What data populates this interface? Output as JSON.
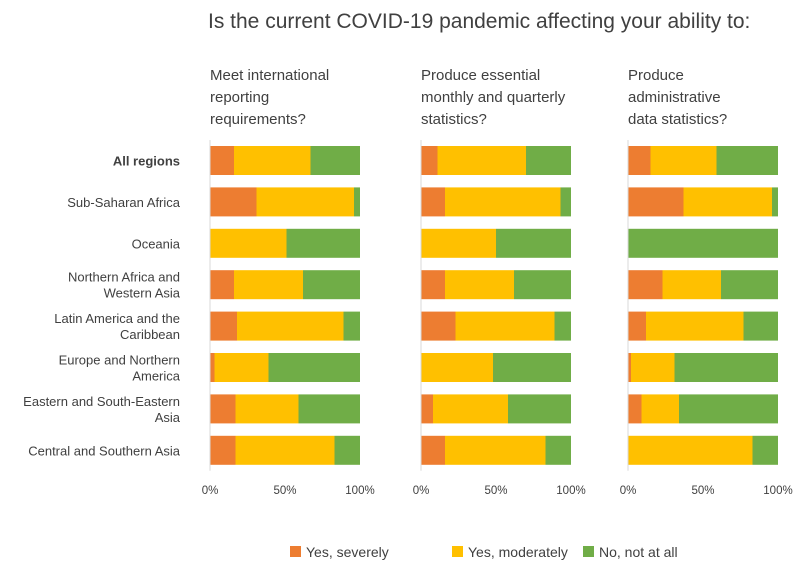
{
  "chart_data": {
    "type": "bar",
    "orientation": "horizontal",
    "stacked": true,
    "percent_stacked": true,
    "title": "Is the current COVID-19 pandemic affecting your ability to:",
    "categories": [
      [
        "All regions"
      ],
      [
        "Sub-Saharan Africa"
      ],
      [
        "Oceania"
      ],
      [
        "Northern Africa and",
        "Western Asia"
      ],
      [
        "Latin America and the",
        "Caribbean"
      ],
      [
        "Europe and Northern",
        "America"
      ],
      [
        "Eastern and South-Eastern",
        "Asia"
      ],
      [
        "Central and Southern Asia"
      ]
    ],
    "bold_categories": [
      0
    ],
    "xticks": [
      "0%",
      "50%",
      "100%"
    ],
    "xlim": [
      0,
      100
    ],
    "legend": {
      "placement": "bottom",
      "entries": [
        {
          "name": "Yes, severely",
          "color": "#ED7D31"
        },
        {
          "name": "Yes, moderately",
          "color": "#FFC000"
        },
        {
          "name": "No, not at all",
          "color": "#70AD47"
        }
      ]
    },
    "panels": [
      {
        "title": [
          "Meet international",
          "reporting",
          "requirements?"
        ],
        "series": [
          {
            "name": "Yes, severely",
            "values": [
              16,
              31,
              0,
              16,
              18,
              3,
              17,
              17
            ]
          },
          {
            "name": "Yes, moderately",
            "values": [
              51,
              65,
              51,
              46,
              71,
              36,
              42,
              66
            ]
          },
          {
            "name": "No, not at all",
            "values": [
              33,
              4,
              49,
              38,
              11,
              61,
              41,
              17
            ]
          }
        ]
      },
      {
        "title": [
          "Produce essential",
          "monthly and quarterly",
          "statistics?"
        ],
        "series": [
          {
            "name": "Yes, severely",
            "values": [
              11,
              16,
              0,
              16,
              23,
              0,
              8,
              16
            ]
          },
          {
            "name": "Yes, moderately",
            "values": [
              59,
              77,
              50,
              46,
              66,
              48,
              50,
              67
            ]
          },
          {
            "name": "No, not at all",
            "values": [
              30,
              7,
              50,
              38,
              11,
              52,
              42,
              17
            ]
          }
        ]
      },
      {
        "title": [
          "Produce",
          "administrative",
          "data statistics?"
        ],
        "series": [
          {
            "name": "Yes, severely",
            "values": [
              15,
              37,
              0,
              23,
              12,
              2,
              9,
              0
            ]
          },
          {
            "name": "Yes, moderately",
            "values": [
              44,
              59,
              0,
              39,
              65,
              29,
              25,
              83
            ]
          },
          {
            "name": "No, not at all",
            "values": [
              41,
              4,
              100,
              38,
              23,
              69,
              66,
              17
            ]
          }
        ]
      }
    ]
  }
}
